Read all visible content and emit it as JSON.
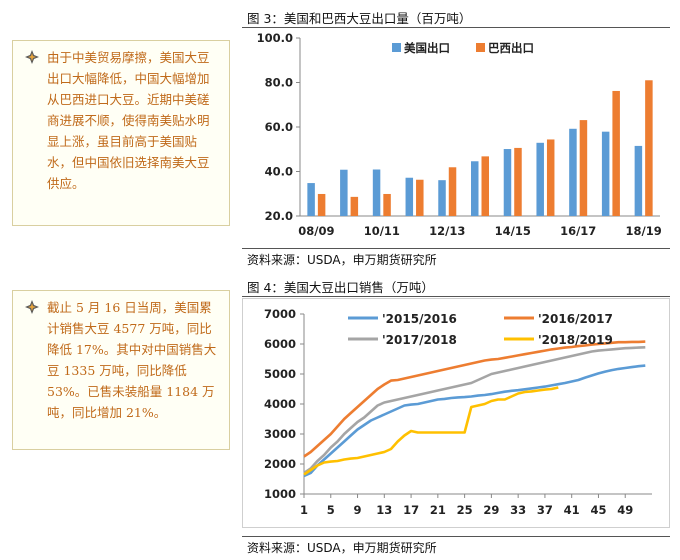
{
  "notes": [
    {
      "text": "由于中美贸易摩擦，美国大豆出口大幅降低，中国大幅增加从巴西进口大豆。近期中美磋商进展不顺，使得南美贴水明显上涨，虽目前高于美国贴水，但中国依旧选择南美大豆供应。"
    },
    {
      "text": "截止 5 月 16 日当周，美国累计销售大豆 4577 万吨，同比降低 17%。其中对中国销售大豆 1335 万吨，同比降低 53%。已售未装船量 1184 万吨，同比增加 21%。"
    }
  ],
  "figures": [
    {
      "title": "图 3：美国和巴西大豆出口量（百万吨）",
      "source": "资料来源：USDA，申万期货研究所"
    },
    {
      "title": "图 4：美国大豆出口销售（万吨）",
      "source": "资料来源：USDA，申万期货研究所"
    }
  ],
  "colors": {
    "us": "#5b9bd5",
    "brazil": "#ed7d31",
    "y1516": "#5b9bd5",
    "y1617": "#ed7d31",
    "y1718": "#a5a5a5",
    "y1819": "#ffc000"
  },
  "chart_data": [
    {
      "type": "bar",
      "title": "图 3：美国和巴西大豆出口量（百万吨）",
      "categories": [
        "08/09",
        "09/10",
        "10/11",
        "11/12",
        "12/13",
        "13/14",
        "14/15",
        "15/16",
        "16/17",
        "17/18",
        "18/19"
      ],
      "x_tick_labels": [
        "08/09",
        "10/11",
        "12/13",
        "14/15",
        "16/17",
        "18/19"
      ],
      "series": [
        {
          "name": "美国出口",
          "values": [
            34.8,
            40.8,
            40.9,
            37.2,
            36.1,
            44.6,
            50.1,
            52.9,
            59.2,
            57.9,
            51.5
          ]
        },
        {
          "name": "巴西出口",
          "values": [
            29.9,
            28.6,
            29.9,
            36.3,
            41.9,
            46.8,
            50.6,
            54.4,
            63.1,
            76.2,
            81.0
          ]
        }
      ],
      "y_ticks": [
        "100.0",
        "80.0",
        "60.0",
        "40.0",
        "20.0"
      ],
      "ylim": [
        20,
        100
      ],
      "legend": "top"
    },
    {
      "type": "line",
      "title": "图 4：美国大豆出口销售（万吨）",
      "x_tick_labels": [
        "1",
        "5",
        "9",
        "13",
        "17",
        "21",
        "25",
        "29",
        "33",
        "37",
        "41",
        "45",
        "49"
      ],
      "y_ticks": [
        "7000",
        "6000",
        "5000",
        "4000",
        "3000",
        "2000",
        "1000"
      ],
      "ylim": [
        1000,
        7000
      ],
      "xlim": [
        1,
        53
      ],
      "series": [
        {
          "name": "'2015/2016",
          "x": [
            1,
            2,
            3,
            4,
            5,
            6,
            7,
            8,
            9,
            10,
            11,
            12,
            13,
            14,
            15,
            16,
            17,
            18,
            19,
            20,
            21,
            22,
            23,
            24,
            25,
            26,
            27,
            28,
            29,
            30,
            31,
            32,
            33,
            34,
            35,
            36,
            37,
            38,
            39,
            40,
            41,
            42,
            43,
            44,
            45,
            46,
            47,
            48,
            49,
            50,
            51,
            52
          ],
          "y": [
            1600,
            1700,
            1950,
            2150,
            2350,
            2550,
            2750,
            2950,
            3150,
            3300,
            3450,
            3550,
            3650,
            3750,
            3850,
            3950,
            3980,
            4000,
            4050,
            4100,
            4150,
            4170,
            4200,
            4220,
            4230,
            4250,
            4280,
            4300,
            4330,
            4370,
            4410,
            4440,
            4460,
            4490,
            4520,
            4550,
            4580,
            4620,
            4660,
            4700,
            4750,
            4800,
            4880,
            4950,
            5020,
            5080,
            5130,
            5170,
            5200,
            5230,
            5260,
            5280
          ]
        },
        {
          "name": "'2016/2017",
          "x": [
            1,
            2,
            3,
            4,
            5,
            6,
            7,
            8,
            9,
            10,
            11,
            12,
            13,
            14,
            15,
            16,
            17,
            18,
            19,
            20,
            21,
            22,
            23,
            24,
            25,
            26,
            27,
            28,
            29,
            30,
            31,
            32,
            33,
            34,
            35,
            36,
            37,
            38,
            39,
            40,
            41,
            42,
            43,
            44,
            45,
            46,
            47,
            48,
            49,
            50,
            51,
            52
          ],
          "y": [
            2250,
            2400,
            2600,
            2800,
            3000,
            3250,
            3500,
            3700,
            3900,
            4100,
            4300,
            4500,
            4650,
            4780,
            4800,
            4850,
            4900,
            4950,
            5000,
            5050,
            5100,
            5150,
            5200,
            5250,
            5300,
            5350,
            5400,
            5450,
            5480,
            5500,
            5540,
            5580,
            5620,
            5660,
            5700,
            5740,
            5780,
            5820,
            5850,
            5880,
            5900,
            5930,
            5950,
            5980,
            6000,
            6020,
            6040,
            6060,
            6060,
            6070,
            6070,
            6080
          ]
        },
        {
          "name": "'2017/2018",
          "x": [
            1,
            2,
            3,
            4,
            5,
            6,
            7,
            8,
            9,
            10,
            11,
            12,
            13,
            14,
            15,
            16,
            17,
            18,
            19,
            20,
            21,
            22,
            23,
            24,
            25,
            26,
            27,
            28,
            29,
            30,
            31,
            32,
            33,
            34,
            35,
            36,
            37,
            38,
            39,
            40,
            41,
            42,
            43,
            44,
            45,
            46,
            47,
            48,
            49,
            50,
            51,
            52
          ],
          "y": [
            1700,
            1850,
            2100,
            2300,
            2550,
            2750,
            3000,
            3200,
            3400,
            3550,
            3750,
            3950,
            4050,
            4100,
            4150,
            4200,
            4250,
            4300,
            4350,
            4400,
            4450,
            4500,
            4550,
            4600,
            4650,
            4700,
            4800,
            4900,
            5000,
            5050,
            5100,
            5150,
            5200,
            5250,
            5300,
            5350,
            5400,
            5450,
            5500,
            5550,
            5600,
            5650,
            5700,
            5750,
            5780,
            5800,
            5820,
            5840,
            5860,
            5870,
            5880,
            5890
          ]
        },
        {
          "name": "'2018/2019",
          "x": [
            1,
            2,
            3,
            4,
            5,
            6,
            7,
            8,
            9,
            10,
            11,
            12,
            13,
            14,
            15,
            16,
            17,
            18,
            19,
            20,
            21,
            22,
            23,
            24,
            25,
            26,
            27,
            28,
            29,
            30,
            31,
            32,
            33,
            34,
            35,
            36,
            37,
            38,
            39
          ],
          "y": [
            1650,
            1800,
            1950,
            2050,
            2080,
            2100,
            2150,
            2180,
            2200,
            2250,
            2300,
            2350,
            2400,
            2500,
            2750,
            2950,
            3100,
            3050,
            3050,
            3050,
            3050,
            3050,
            3050,
            3050,
            3050,
            3900,
            3950,
            4000,
            4100,
            4150,
            4150,
            4250,
            4350,
            4400,
            4420,
            4450,
            4480,
            4500,
            4550
          ]
        }
      ],
      "legend": "top-left"
    }
  ]
}
